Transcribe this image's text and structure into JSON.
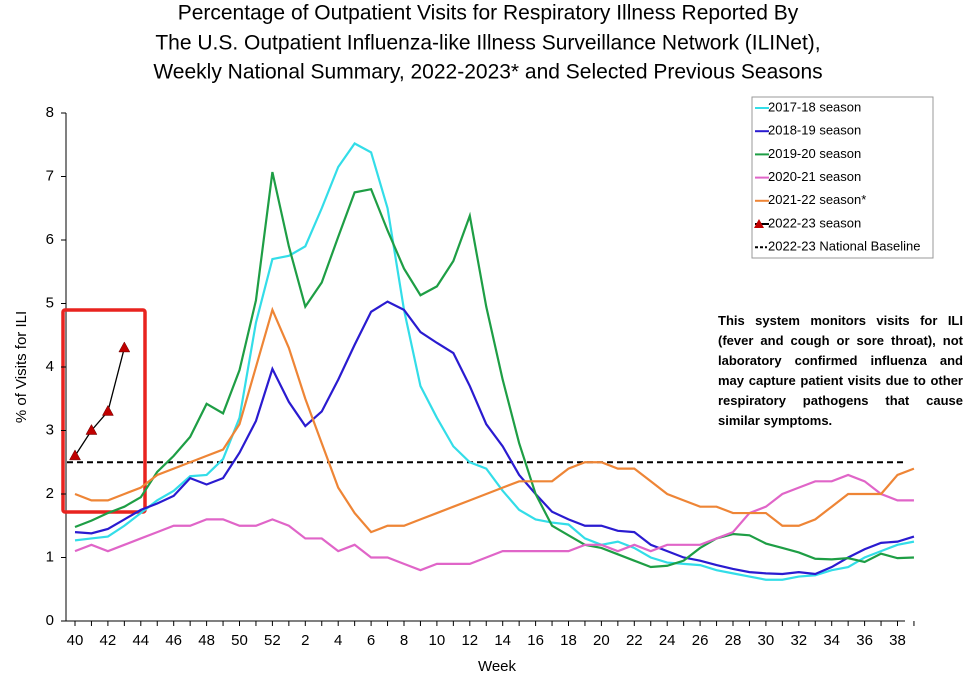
{
  "chart_data": {
    "type": "line",
    "title": [
      "Percentage of Outpatient Visits for Respiratory Illness Reported By",
      "The U.S. Outpatient Influenza-like Illness Surveillance Network (ILINet),",
      "Weekly National Summary, 2022-2023* and Selected Previous Seasons"
    ],
    "x_label": "Week",
    "y_label": "% of Visits for ILI",
    "categories": [
      40,
      null,
      42,
      null,
      44,
      null,
      46,
      null,
      48,
      null,
      50,
      null,
      52,
      null,
      2,
      null,
      4,
      null,
      6,
      null,
      8,
      null,
      10,
      null,
      12,
      null,
      14,
      null,
      16,
      null,
      18,
      null,
      20,
      null,
      22,
      null,
      24,
      null,
      26,
      null,
      28,
      null,
      30,
      null,
      32,
      null,
      34,
      null,
      36,
      null,
      38,
      null
    ],
    "ylim": [
      0,
      8
    ],
    "yticks": [
      0,
      1,
      2,
      3,
      4,
      5,
      6,
      7,
      8
    ],
    "series": [
      {
        "name": "2017-18 season",
        "color": "#33dde8",
        "values": [
          1.27,
          1.3,
          1.33,
          1.5,
          1.7,
          1.9,
          2.05,
          2.28,
          2.3,
          2.55,
          3.2,
          4.7,
          5.7,
          5.75,
          5.9,
          6.5,
          7.15,
          7.52,
          7.38,
          6.5,
          4.9,
          3.7,
          3.2,
          2.75,
          2.5,
          2.4,
          2.05,
          1.75,
          1.6,
          1.55,
          1.52,
          1.3,
          1.2,
          1.25,
          1.15,
          1.0,
          0.92,
          0.9,
          0.88,
          0.8,
          0.75,
          0.7,
          0.65,
          0.65,
          0.7,
          0.72,
          0.8,
          0.85,
          1.0,
          1.1,
          1.2,
          1.25
        ]
      },
      {
        "name": "2018-19 season",
        "color": "#2a1bd0",
        "values": [
          1.4,
          1.38,
          1.45,
          1.6,
          1.75,
          1.85,
          1.97,
          2.25,
          2.15,
          2.25,
          2.65,
          3.15,
          3.97,
          3.45,
          3.07,
          3.3,
          3.8,
          4.35,
          4.87,
          5.03,
          4.9,
          4.55,
          4.38,
          4.22,
          3.7,
          3.1,
          2.75,
          2.3,
          2.0,
          1.72,
          1.6,
          1.5,
          1.5,
          1.42,
          1.4,
          1.2,
          1.1,
          1.0,
          0.95,
          0.88,
          0.82,
          0.77,
          0.75,
          0.74,
          0.77,
          0.74,
          0.85,
          1.0,
          1.13,
          1.23,
          1.25,
          1.33
        ]
      },
      {
        "name": "2019-20 season",
        "color": "#1e9e45",
        "values": [
          1.48,
          1.58,
          1.7,
          1.8,
          1.95,
          2.35,
          2.6,
          2.9,
          3.42,
          3.27,
          3.95,
          5.05,
          7.07,
          5.9,
          4.95,
          5.33,
          6.05,
          6.75,
          6.8,
          6.15,
          5.55,
          5.13,
          5.27,
          5.67,
          6.38,
          4.95,
          3.8,
          2.8,
          2.0,
          1.5,
          1.35,
          1.2,
          1.15,
          1.05,
          0.95,
          0.85,
          0.87,
          0.95,
          1.15,
          1.3,
          1.37,
          1.35,
          1.22,
          1.15,
          1.08,
          0.98,
          0.97,
          0.99,
          0.93,
          1.06,
          0.99,
          1.0
        ]
      },
      {
        "name": "2020-21 season",
        "color": "#e065c8",
        "values": [
          1.1,
          1.2,
          1.1,
          1.2,
          1.3,
          1.4,
          1.5,
          1.5,
          1.6,
          1.6,
          1.5,
          1.5,
          1.6,
          1.5,
          1.3,
          1.3,
          1.1,
          1.2,
          1.0,
          1.0,
          0.9,
          0.8,
          0.9,
          0.9,
          0.9,
          1.0,
          1.1,
          1.1,
          1.1,
          1.1,
          1.1,
          1.2,
          1.2,
          1.1,
          1.2,
          1.1,
          1.2,
          1.2,
          1.2,
          1.3,
          1.4,
          1.7,
          1.8,
          2.0,
          2.1,
          2.2,
          2.2,
          2.3,
          2.2,
          2.0,
          1.9,
          1.9
        ]
      },
      {
        "name": "2021-22 season*",
        "color": "#ee8536",
        "values": [
          2.0,
          1.9,
          1.9,
          2.0,
          2.1,
          2.3,
          2.4,
          2.5,
          2.6,
          2.7,
          3.1,
          4.0,
          4.9,
          4.3,
          3.5,
          2.8,
          2.1,
          1.7,
          1.4,
          1.5,
          1.5,
          1.6,
          1.7,
          1.8,
          1.9,
          2.0,
          2.1,
          2.2,
          2.2,
          2.2,
          2.4,
          2.5,
          2.5,
          2.4,
          2.4,
          2.2,
          2.0,
          1.9,
          1.8,
          1.8,
          1.7,
          1.7,
          1.7,
          1.5,
          1.5,
          1.6,
          1.8,
          2.0,
          2.0,
          2.0,
          2.3,
          2.4
        ]
      },
      {
        "name": "2022-23 season",
        "color": "#000000",
        "marker": "triangle",
        "marker_color": "#c00000",
        "values": [
          2.6,
          3.0,
          3.3,
          4.3,
          null,
          null,
          null,
          null,
          null,
          null,
          null,
          null,
          null,
          null,
          null,
          null,
          null,
          null,
          null,
          null,
          null,
          null,
          null,
          null,
          null,
          null,
          null,
          null,
          null,
          null,
          null,
          null,
          null,
          null,
          null,
          null,
          null,
          null,
          null,
          null,
          null,
          null,
          null,
          null,
          null,
          null,
          null,
          null,
          null,
          null,
          null,
          null
        ]
      }
    ],
    "baseline": {
      "name": "2022-23 National Baseline",
      "value": 2.5,
      "color": "#000000"
    },
    "annotation": "This system monitors visits for ILI (fever and cough or sore throat), not laboratory confirmed influenza and may capture patient visits due to other respiratory pathogens that cause similar symptoms.",
    "legend": "upper right"
  }
}
